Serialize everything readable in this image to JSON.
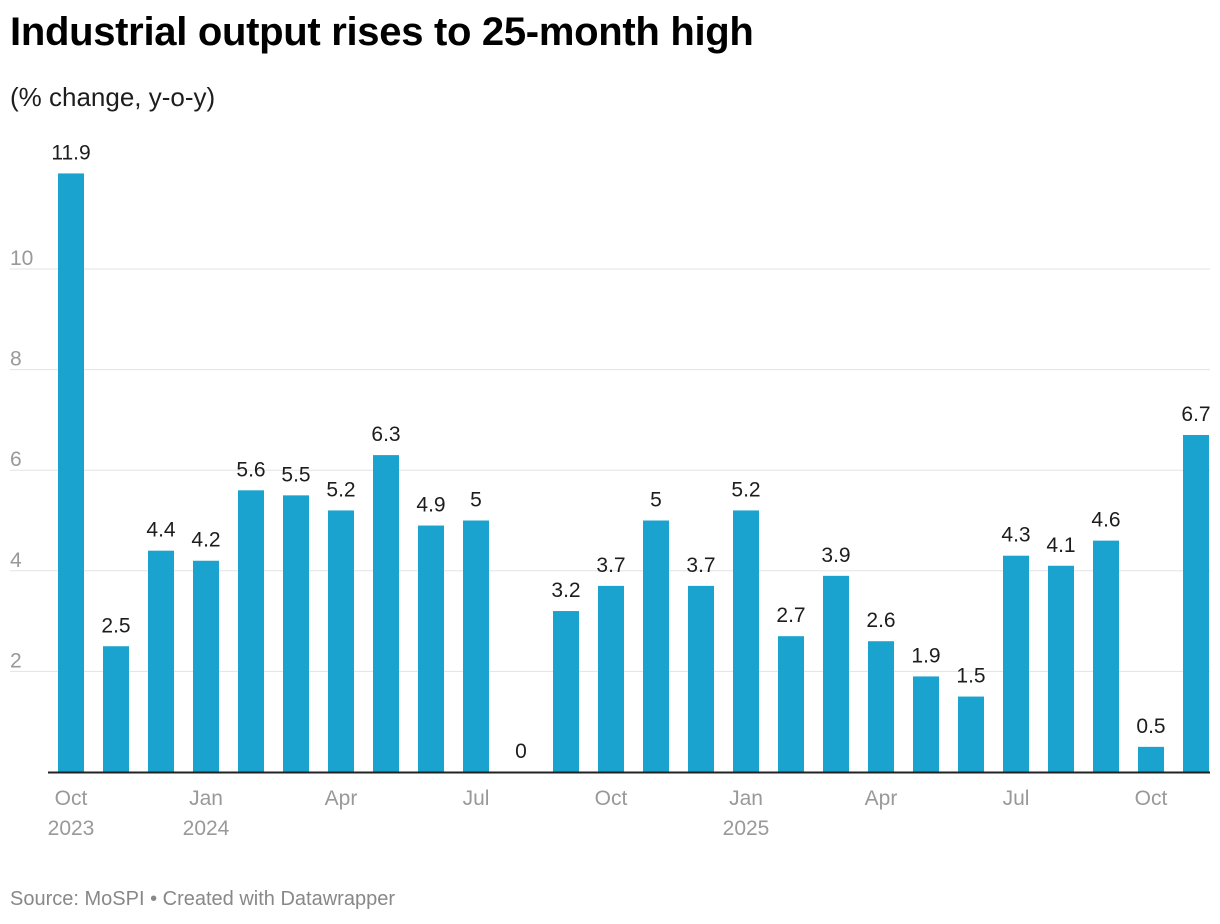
{
  "title": "Industrial output rises to 25-month high",
  "subtitle": "(% change, y-o-y)",
  "footer": {
    "source": "Source: MoSPI",
    "separator": " • ",
    "credit": "Created with Datawrapper"
  },
  "colors": {
    "bar": "#1ba3d0",
    "grid": "#e3e3e3",
    "axis": "#222222",
    "tick_text": "#999999",
    "label_text": "#1d1d1d"
  },
  "chart_data": {
    "type": "bar",
    "title": "Industrial output rises to 25-month high",
    "subtitle": "(% change, y-o-y)",
    "categories": [
      "Oct 2023",
      "Nov 2023",
      "Dec 2023",
      "Jan 2024",
      "Feb 2024",
      "Mar 2024",
      "Apr 2024",
      "May 2024",
      "Jun 2024",
      "Jul 2024",
      "Aug 2024",
      "Sep 2024",
      "Oct 2024",
      "Nov 2024",
      "Dec 2024",
      "Jan 2025",
      "Feb 2025",
      "Mar 2025",
      "Apr 2025",
      "May 2025",
      "Jun 2025",
      "Jul 2025",
      "Aug 2025",
      "Sep 2025",
      "Oct 2025",
      "Nov 2025"
    ],
    "values": [
      11.9,
      2.5,
      4.4,
      4.2,
      5.6,
      5.5,
      5.2,
      6.3,
      4.9,
      5,
      0,
      3.2,
      3.7,
      5,
      3.7,
      5.2,
      2.7,
      3.9,
      2.6,
      1.9,
      1.5,
      4.3,
      4.1,
      4.6,
      0.5,
      6.7
    ],
    "value_labels": [
      "11.9",
      "2.5",
      "4.4",
      "4.2",
      "5.6",
      "5.5",
      "5.2",
      "6.3",
      "4.9",
      "5",
      "0",
      "3.2",
      "3.7",
      "5",
      "3.7",
      "5.2",
      "2.7",
      "3.9",
      "2.6",
      "1.9",
      "1.5",
      "4.3",
      "4.1",
      "4.6",
      "0.5",
      "6.7"
    ],
    "y_ticks": [
      2,
      4,
      6,
      8,
      10
    ],
    "y_tick_labels": [
      "2",
      "4",
      "6",
      "8",
      "10"
    ],
    "ylim": [
      0,
      12
    ],
    "x_ticks": [
      {
        "index": 0,
        "line1": "Oct",
        "line2": "2023"
      },
      {
        "index": 3,
        "line1": "Jan",
        "line2": "2024"
      },
      {
        "index": 6,
        "line1": "Apr",
        "line2": ""
      },
      {
        "index": 9,
        "line1": "Jul",
        "line2": ""
      },
      {
        "index": 12,
        "line1": "Oct",
        "line2": ""
      },
      {
        "index": 15,
        "line1": "Jan",
        "line2": "2025"
      },
      {
        "index": 18,
        "line1": "Apr",
        "line2": ""
      },
      {
        "index": 21,
        "line1": "Jul",
        "line2": ""
      },
      {
        "index": 24,
        "line1": "Oct",
        "line2": ""
      }
    ],
    "grid": true,
    "legend": "none"
  }
}
